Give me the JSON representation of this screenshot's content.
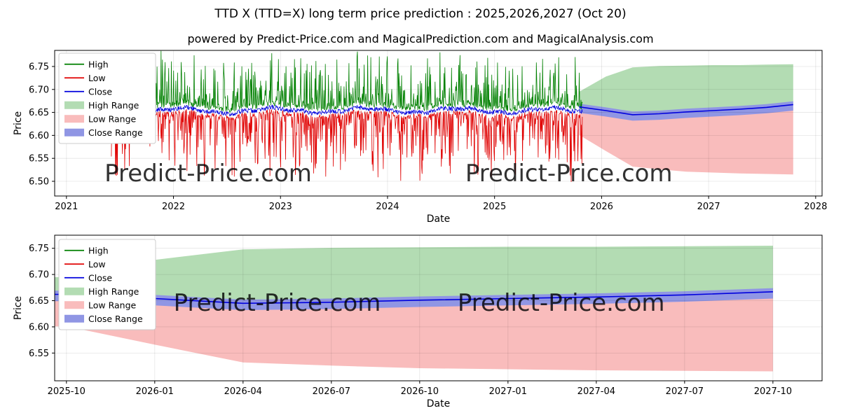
{
  "title": "TTD X (TTD=X) long term price prediction : 2025,2026,2027 (Oct 20)",
  "subtitle": "powered by Predict-Price.com and MagicalPrediction.com and MagicalAnalysis.com",
  "watermark": "Predict-Price.com",
  "colors": {
    "high_line": "#008000",
    "low_line": "#e00000",
    "close_line": "#0000dd",
    "high_range": "#b3dcb3",
    "low_range": "#f9bcbc",
    "close_range": "#9096e4",
    "grid": "rgba(0,0,0,0.10)",
    "watermark_text": "#bdbdbd",
    "axis": "#000000"
  },
  "legend": {
    "position": "upper left",
    "entries": [
      {
        "label": "High",
        "type": "line",
        "color": "high_line"
      },
      {
        "label": "Low",
        "type": "line",
        "color": "low_line"
      },
      {
        "label": "Close",
        "type": "line",
        "color": "close_line"
      },
      {
        "label": "High Range",
        "type": "patch",
        "color": "high_range"
      },
      {
        "label": "Low Range",
        "type": "patch",
        "color": "low_range"
      },
      {
        "label": "Close Range",
        "type": "patch",
        "color": "close_range"
      }
    ]
  },
  "chart_data": [
    {
      "name": "long-term-history-and-forecast",
      "type": "line",
      "xlabel": "Date",
      "ylabel": "Price",
      "xlim": [
        2020.89,
        2028.06
      ],
      "ylim": [
        6.468,
        6.785
      ],
      "grid": true,
      "xticks": {
        "values": [
          2021,
          2022,
          2023,
          2024,
          2025,
          2026,
          2027,
          2028
        ],
        "labels": [
          "2021",
          "2022",
          "2023",
          "2024",
          "2025",
          "2026",
          "2027",
          "2028"
        ]
      },
      "yticks": {
        "values": [
          6.5,
          6.55,
          6.6,
          6.65,
          6.7,
          6.75
        ],
        "labels": [
          "6.50",
          "6.55",
          "6.60",
          "6.65",
          "6.70",
          "6.75"
        ]
      },
      "historical": {
        "note": "noisy daily High/Low/Close series, values as read from chart",
        "segments": [
          [
            2021.42,
            2021.6
          ],
          [
            2021.73,
            2025.82
          ]
        ],
        "points_per_year": 240,
        "close_base": 6.654,
        "close_wobble": 0.005,
        "close_noise": 0.005,
        "high_offset": 0.008,
        "high_spike": 0.115,
        "low_offset": 0.008,
        "low_spike": 0.145,
        "high_max": 6.78,
        "low_min": 6.49,
        "seed": 1234
      },
      "forecast_month0_year": 2025.79,
      "forecast": {
        "months": [
          0,
          3,
          6,
          9,
          12,
          15,
          18,
          21,
          24
        ],
        "month_labels": [
          "2025-10",
          "2026-01",
          "2026-04",
          "2026-07",
          "2026-10",
          "2027-01",
          "2027-04",
          "2027-07",
          "2027-10"
        ],
        "close": [
          6.662,
          6.654,
          6.645,
          6.647,
          6.651,
          6.654,
          6.657,
          6.661,
          6.667
        ],
        "close_range_upper": [
          6.669,
          6.661,
          6.652,
          6.654,
          6.658,
          6.661,
          6.664,
          6.668,
          6.674
        ],
        "close_range_lower": [
          6.649,
          6.641,
          6.632,
          6.634,
          6.638,
          6.641,
          6.644,
          6.648,
          6.654
        ],
        "high_range_upper": [
          6.695,
          6.728,
          6.748,
          6.751,
          6.752,
          6.753,
          6.753,
          6.754,
          6.755
        ],
        "high_range_lower": [
          6.666,
          6.658,
          6.649,
          6.651,
          6.655,
          6.658,
          6.661,
          6.665,
          6.671
        ],
        "low_range_upper": [
          6.656,
          6.648,
          6.639,
          6.641,
          6.645,
          6.648,
          6.651,
          6.655,
          6.661
        ],
        "low_range_lower": [
          6.601,
          6.566,
          6.532,
          6.526,
          6.521,
          6.519,
          6.517,
          6.516,
          6.515
        ]
      },
      "watermark_positions": [
        [
          0.2,
          0.9
        ],
        [
          0.67,
          0.9
        ]
      ]
    },
    {
      "name": "forecast-detail",
      "type": "line",
      "xlabel": "Date",
      "ylabel": "Price",
      "x_unit": "months after 2025-10",
      "xlim": [
        -0.4,
        25.67
      ],
      "ylim": [
        6.497,
        6.775
      ],
      "grid": true,
      "xticks": {
        "values": [
          0,
          3,
          6,
          9,
          12,
          15,
          18,
          21,
          24
        ],
        "labels": [
          "2025-10",
          "2026-01",
          "2026-04",
          "2026-07",
          "2026-10",
          "2027-01",
          "2027-04",
          "2027-07",
          "2027-10"
        ]
      },
      "yticks": {
        "values": [
          6.55,
          6.6,
          6.65,
          6.7,
          6.75
        ],
        "labels": [
          "6.55",
          "6.60",
          "6.65",
          "6.70",
          "6.75"
        ]
      },
      "forecast": {
        "months": [
          0,
          3,
          6,
          9,
          12,
          15,
          18,
          21,
          24
        ],
        "close": [
          6.662,
          6.654,
          6.645,
          6.647,
          6.651,
          6.654,
          6.657,
          6.661,
          6.667
        ],
        "close_range_upper": [
          6.669,
          6.661,
          6.652,
          6.654,
          6.658,
          6.661,
          6.664,
          6.668,
          6.674
        ],
        "close_range_lower": [
          6.649,
          6.641,
          6.632,
          6.634,
          6.638,
          6.641,
          6.644,
          6.648,
          6.654
        ],
        "high_range_upper": [
          6.695,
          6.728,
          6.748,
          6.751,
          6.752,
          6.753,
          6.753,
          6.754,
          6.755
        ],
        "high_range_lower": [
          6.666,
          6.658,
          6.649,
          6.651,
          6.655,
          6.658,
          6.661,
          6.665,
          6.671
        ],
        "low_range_upper": [
          6.656,
          6.648,
          6.639,
          6.641,
          6.645,
          6.648,
          6.651,
          6.655,
          6.661
        ],
        "low_range_lower": [
          6.601,
          6.566,
          6.532,
          6.526,
          6.521,
          6.519,
          6.517,
          6.516,
          6.515
        ]
      },
      "watermark_positions": [
        [
          0.29,
          0.52
        ],
        [
          0.66,
          0.52
        ]
      ]
    }
  ]
}
